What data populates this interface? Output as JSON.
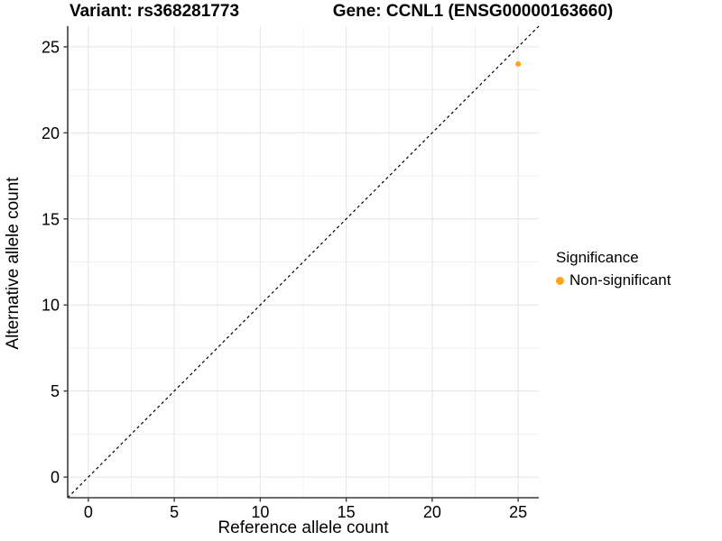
{
  "titles": {
    "variant": "Variant: rs368281773",
    "gene": "Gene: CCNL1 (ENSG00000163660)"
  },
  "chart_data": {
    "type": "scatter",
    "xlabel": "Reference allele count",
    "ylabel": "Alternative allele count",
    "xlim": [
      -1.2,
      26.2
    ],
    "ylim": [
      -1.2,
      26.2
    ],
    "x_ticks": [
      0,
      5,
      10,
      15,
      20,
      25
    ],
    "y_ticks": [
      0,
      5,
      10,
      15,
      20,
      25
    ],
    "x_minor_ticks": [
      2.5,
      7.5,
      12.5,
      17.5,
      22.5
    ],
    "y_minor_ticks": [
      2.5,
      7.5,
      12.5,
      17.5,
      22.5
    ],
    "grid": "major+minor",
    "points": [
      {
        "x": 25,
        "y": 24,
        "series": "Non-significant"
      }
    ],
    "reference_line": {
      "type": "identity y=x",
      "style": "dashed",
      "color": "#000000"
    },
    "legend": {
      "title": "Significance",
      "position": "right",
      "items": [
        {
          "label": "Non-significant",
          "color": "#FFA31A"
        }
      ]
    }
  },
  "colors": {
    "background": "#FFFFFF",
    "point": "#FFA31A",
    "grid_major": "#E4E4E4",
    "grid_minor": "#F0F0F0",
    "axis_line": "#3C3C3C",
    "text": "#000000"
  }
}
